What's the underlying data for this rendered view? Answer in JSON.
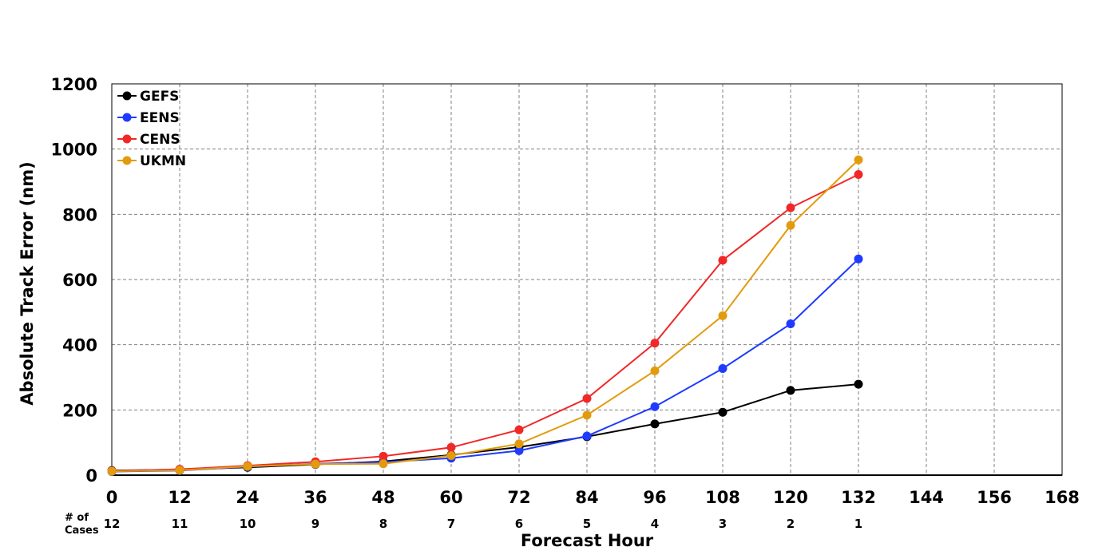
{
  "chart_data": {
    "type": "line",
    "title": "",
    "xlabel": "Forecast Hour",
    "ylabel": "Absolute Track Error (nm)",
    "xlim": [
      0,
      168
    ],
    "ylim": [
      0,
      1200
    ],
    "x_ticks": [
      0,
      12,
      24,
      36,
      48,
      60,
      72,
      84,
      96,
      108,
      120,
      132,
      144,
      156,
      168
    ],
    "y_ticks": [
      0,
      200,
      400,
      600,
      800,
      1000,
      1200
    ],
    "grid": true,
    "legend_position": "top-left",
    "cases_label_line1": "# of",
    "cases_label_line2": "Cases",
    "cases": [
      {
        "x": 0,
        "n": "12"
      },
      {
        "x": 12,
        "n": "11"
      },
      {
        "x": 24,
        "n": "10"
      },
      {
        "x": 36,
        "n": "9"
      },
      {
        "x": 48,
        "n": "8"
      },
      {
        "x": 60,
        "n": "7"
      },
      {
        "x": 72,
        "n": "6"
      },
      {
        "x": 84,
        "n": "5"
      },
      {
        "x": 96,
        "n": "4"
      },
      {
        "x": 108,
        "n": "3"
      },
      {
        "x": 120,
        "n": "2"
      },
      {
        "x": 132,
        "n": "1"
      }
    ],
    "x": [
      0,
      12,
      24,
      36,
      48,
      60,
      72,
      84,
      96,
      108,
      120,
      132
    ],
    "series": [
      {
        "name": "GEFS",
        "color": "#000000",
        "values": [
          14,
          17,
          24,
          33,
          42,
          62,
          86,
          118,
          157,
          193,
          260,
          279
        ]
      },
      {
        "name": "EENS",
        "color": "#1f3bff",
        "values": [
          11,
          14,
          26,
          35,
          40,
          52,
          75,
          120,
          210,
          327,
          464,
          663
        ]
      },
      {
        "name": "CENS",
        "color": "#f02828",
        "values": [
          13,
          18,
          29,
          41,
          58,
          85,
          139,
          235,
          405,
          659,
          820,
          922
        ]
      },
      {
        "name": "UKMN",
        "color": "#e39b0c",
        "values": [
          12,
          15,
          27,
          34,
          35,
          60,
          96,
          184,
          320,
          489,
          766,
          967
        ]
      }
    ]
  }
}
